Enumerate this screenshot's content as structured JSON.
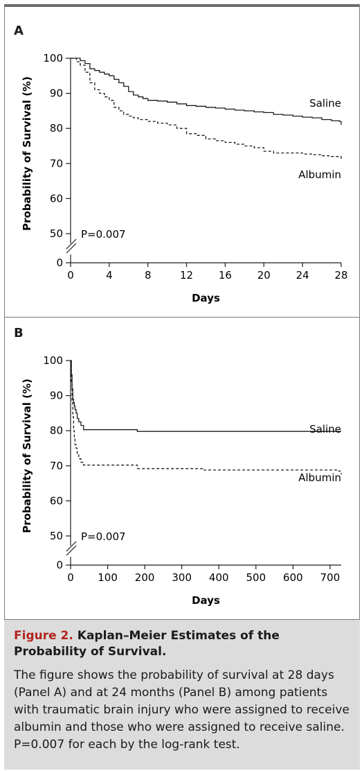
{
  "caption": {
    "figure_number": "Figure 2.",
    "title": "Kaplan–Meier Estimates of the Probability of Survival.",
    "body": "The figure shows the probability of survival at 28 days (Panel A) and at 24 months (Panel B) among patients with traumatic brain injury who were assigned to receive albumin and those who were assigned to receive saline. P=0.007 for each by the log-rank test."
  },
  "chart_data": [
    {
      "panel": "A",
      "type": "line",
      "xlabel": "Days",
      "ylabel": "Probability of Survival (%)",
      "xlim": [
        0,
        28
      ],
      "ylim": [
        0,
        100
      ],
      "axis_break": [
        0,
        50
      ],
      "xticks": [
        0,
        4,
        8,
        12,
        16,
        20,
        24,
        28
      ],
      "yticks": [
        0,
        50,
        60,
        70,
        80,
        90,
        100
      ],
      "annotation": "P=0.007",
      "series": [
        {
          "name": "Saline",
          "style": "solid",
          "x": [
            0,
            0.6,
            1.0,
            1.5,
            2.0,
            2.5,
            3.0,
            3.5,
            4.0,
            4.5,
            5.0,
            5.5,
            6.0,
            6.5,
            7.0,
            7.5,
            8.0,
            9.0,
            10.0,
            11.0,
            12.0,
            13.0,
            14.0,
            15.0,
            16.0,
            17.0,
            18.0,
            19.0,
            20.0,
            21.0,
            22.0,
            23.0,
            24.0,
            25.0,
            26.0,
            27.0,
            27.8,
            28.0
          ],
          "y": [
            100,
            100,
            99.3,
            98.5,
            97.0,
            96.5,
            96.0,
            95.5,
            95.0,
            94.0,
            93.0,
            92.0,
            90.5,
            89.5,
            89.0,
            88.5,
            88.0,
            87.8,
            87.5,
            87.0,
            86.5,
            86.3,
            86.0,
            85.8,
            85.5,
            85.2,
            85.0,
            84.7,
            84.5,
            84.0,
            83.8,
            83.5,
            83.2,
            83.0,
            82.5,
            82.2,
            82.0,
            81.0
          ]
        },
        {
          "name": "Albumin",
          "style": "dashed",
          "x": [
            0,
            0.6,
            1.0,
            1.5,
            2.0,
            2.5,
            3.0,
            3.5,
            4.0,
            4.5,
            5.0,
            5.5,
            6.0,
            6.5,
            7.0,
            8.0,
            9.0,
            10.0,
            11.0,
            12.0,
            13.0,
            14.0,
            15.0,
            16.0,
            17.0,
            18.0,
            19.0,
            20.0,
            21.0,
            22.0,
            23.0,
            24.0,
            25.0,
            26.0,
            27.0,
            28.0
          ],
          "y": [
            100,
            99.0,
            98.0,
            96.0,
            93.0,
            91.0,
            90.0,
            89.0,
            88.0,
            86.0,
            85.0,
            84.0,
            83.5,
            83.0,
            82.5,
            82.0,
            81.5,
            81.0,
            80.0,
            78.5,
            78.0,
            77.0,
            76.5,
            76.0,
            75.5,
            75.0,
            74.5,
            73.5,
            73.0,
            73.0,
            73.0,
            72.7,
            72.5,
            72.2,
            72.0,
            71.0
          ]
        }
      ]
    },
    {
      "panel": "B",
      "type": "line",
      "xlabel": "Days",
      "ylabel": "Probability of Survival (%)",
      "xlim": [
        0,
        730
      ],
      "ylim": [
        0,
        100
      ],
      "axis_break": [
        0,
        50
      ],
      "xticks": [
        0,
        100,
        200,
        300,
        400,
        500,
        600,
        700
      ],
      "yticks": [
        0,
        50,
        60,
        70,
        80,
        90,
        100
      ],
      "annotation": "P=0.007",
      "series": [
        {
          "name": "Saline",
          "style": "solid",
          "x": [
            0,
            2,
            4,
            6,
            8,
            10,
            12,
            15,
            18,
            22,
            28,
            35,
            180,
            730
          ],
          "y": [
            100,
            96,
            92,
            89,
            88,
            87,
            86,
            85,
            83.5,
            82.5,
            81.5,
            80.3,
            79.8,
            79.8
          ]
        },
        {
          "name": "Albumin",
          "style": "dashed",
          "x": [
            0,
            2,
            4,
            6,
            8,
            10,
            12,
            15,
            18,
            22,
            28,
            35,
            180,
            360,
            720,
            730
          ],
          "y": [
            100,
            94,
            88,
            84,
            80,
            78,
            76,
            75,
            73.5,
            72,
            71,
            70.2,
            69.2,
            68.8,
            68.5,
            67.5
          ]
        }
      ]
    }
  ]
}
